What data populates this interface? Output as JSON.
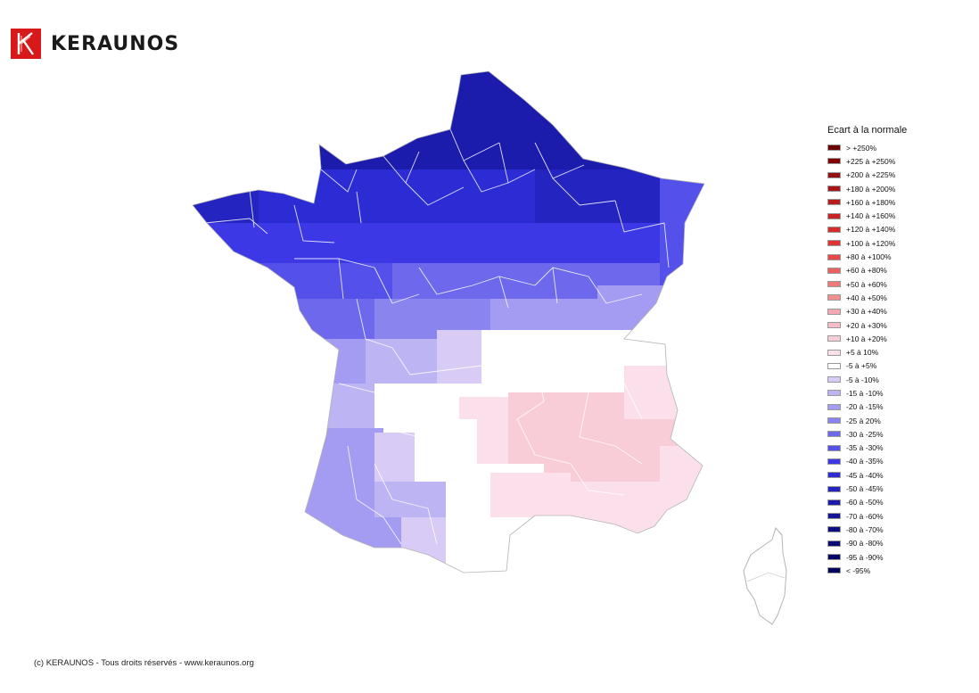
{
  "brand": {
    "name": "KERAUNOS",
    "color": "#d7191c"
  },
  "legend": {
    "title": "Ecart à la normale",
    "items": [
      {
        "label": "> +250%",
        "color": "#6b0000"
      },
      {
        "label": "+225 à +250%",
        "color": "#800000"
      },
      {
        "label": "+200 à +225%",
        "color": "#961010"
      },
      {
        "label": "+180 à +200%",
        "color": "#a81616"
      },
      {
        "label": "+160 à +180%",
        "color": "#b81c1c"
      },
      {
        "label": "+140 à +160%",
        "color": "#c82424"
      },
      {
        "label": "+120 à +140%",
        "color": "#d62c2c"
      },
      {
        "label": "+100 à +120%",
        "color": "#e03434"
      },
      {
        "label": "+80 à +100%",
        "color": "#e84848"
      },
      {
        "label": "+60 à +80%",
        "color": "#ec6060"
      },
      {
        "label": "+50 à +60%",
        "color": "#ef7878"
      },
      {
        "label": "+40 à +50%",
        "color": "#f29090"
      },
      {
        "label": "+30 à +40%",
        "color": "#f4a8b4"
      },
      {
        "label": "+20 à +30%",
        "color": "#f6bcc8"
      },
      {
        "label": "+10 à +20%",
        "color": "#f9cdd8"
      },
      {
        "label": "+5 à 10%",
        "color": "#fbe0ec"
      },
      {
        "label": "-5 à +5%",
        "color": "#ffffff"
      },
      {
        "label": "-5 à -10%",
        "color": "#d8ccf6"
      },
      {
        "label": "-15 à -10%",
        "color": "#bdb4f4"
      },
      {
        "label": "-20 à -15%",
        "color": "#a49cf2"
      },
      {
        "label": "-25 à 20%",
        "color": "#8a84ee"
      },
      {
        "label": "-30 à -25%",
        "color": "#6e68ec"
      },
      {
        "label": "-35 à -30%",
        "color": "#5450ea"
      },
      {
        "label": "-40 à -35%",
        "color": "#3c38e6"
      },
      {
        "label": "-45 à -40%",
        "color": "#2c2cd4"
      },
      {
        "label": "-50 à -45%",
        "color": "#2424c0"
      },
      {
        "label": "-60 à -50%",
        "color": "#1c1cac"
      },
      {
        "label": "-70 à -60%",
        "color": "#141496"
      },
      {
        "label": "-80 à -70%",
        "color": "#0e0e84"
      },
      {
        "label": "-90 à -80%",
        "color": "#0a0a74"
      },
      {
        "label": "-95 à -90%",
        "color": "#060666"
      },
      {
        "label": "< -95%",
        "color": "#02025a"
      }
    ]
  },
  "map": {
    "border_color": "#ffffff",
    "outline_color": "#b4b4b4"
  },
  "credit": "(c) KERAUNOS - Tous droits réservés - www.keraunos.org"
}
